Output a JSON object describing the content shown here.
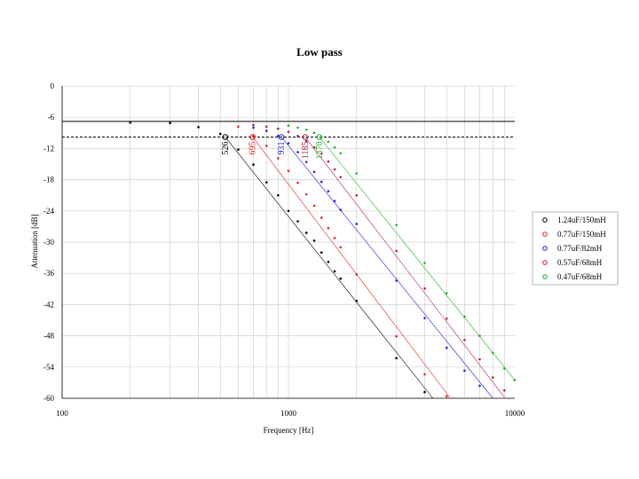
{
  "chart_data": {
    "type": "scatter",
    "title": "Low pass",
    "xlabel": "Frequency [Hz]",
    "ylabel": "Attenuation [dB]",
    "xscale": "log",
    "xlim": [
      100,
      10000
    ],
    "ylim": [
      -60,
      0
    ],
    "x_tick_labels": [
      "100",
      "1000",
      "10000"
    ],
    "y_tick_labels": [
      "0",
      "-6",
      "-12",
      "-18",
      "-24",
      "-30",
      "-36",
      "-42",
      "-48",
      "-54",
      "-60"
    ],
    "grid": true,
    "legend_position": "right",
    "reference_lines": [
      {
        "y": -6.8,
        "style": "solid"
      },
      {
        "y": -9.8,
        "style": "dashed"
      }
    ],
    "series": [
      {
        "name": "1.24uF/150mH",
        "color": "#000000",
        "cutoff": {
          "x": 526,
          "y": -9.8,
          "label": "526"
        },
        "points": [
          [
            200,
            -7
          ],
          [
            300,
            -7.1
          ],
          [
            400,
            -7.9
          ],
          [
            500,
            -9.2
          ],
          [
            600,
            -12.2
          ],
          [
            700,
            -15.1
          ],
          [
            800,
            -18.5
          ],
          [
            900,
            -21
          ],
          [
            1000,
            -24
          ],
          [
            1100,
            -26
          ],
          [
            1200,
            -28.2
          ],
          [
            1300,
            -29.7
          ],
          [
            1400,
            -32
          ],
          [
            1500,
            -33.8
          ],
          [
            1600,
            -35.6
          ],
          [
            1700,
            -37
          ],
          [
            2000,
            -41.3
          ],
          [
            3000,
            -52.3
          ],
          [
            4000,
            -58.8
          ]
        ],
        "fit": [
          [
            526,
            -9.8
          ],
          [
            4350,
            -60
          ]
        ]
      },
      {
        "name": "0.77uF/150mH",
        "color": "#e02020",
        "cutoff": {
          "x": 695,
          "y": -9.8,
          "label": "695"
        },
        "points": [
          [
            600,
            -7.8
          ],
          [
            700,
            -9.6
          ],
          [
            800,
            -11.5
          ],
          [
            900,
            -13.9
          ],
          [
            1000,
            -16.3
          ],
          [
            1100,
            -18.6
          ],
          [
            1200,
            -20.8
          ],
          [
            1300,
            -23
          ],
          [
            1400,
            -25.3
          ],
          [
            1500,
            -27.3
          ],
          [
            1600,
            -29.2
          ],
          [
            1700,
            -31
          ],
          [
            2000,
            -36.2
          ],
          [
            3000,
            -48.1
          ],
          [
            4000,
            -55.4
          ],
          [
            5000,
            -59.6
          ]
        ],
        "fit": [
          [
            695,
            -9.8
          ],
          [
            5200,
            -60
          ]
        ]
      },
      {
        "name": "0.77uF/82mH",
        "color": "#2020e0",
        "cutoff": {
          "x": 931,
          "y": -9.8,
          "label": "931"
        },
        "points": [
          [
            700,
            -8
          ],
          [
            800,
            -8.6
          ],
          [
            900,
            -9.6
          ],
          [
            1000,
            -11
          ],
          [
            1100,
            -12.7
          ],
          [
            1200,
            -14.6
          ],
          [
            1300,
            -16.5
          ],
          [
            1400,
            -18.4
          ],
          [
            1500,
            -20.2
          ],
          [
            1600,
            -22.1
          ],
          [
            1700,
            -23.8
          ],
          [
            2000,
            -26.5
          ],
          [
            3000,
            -37.4
          ],
          [
            4000,
            -44.6
          ],
          [
            5000,
            -50.3
          ],
          [
            6000,
            -54.7
          ],
          [
            7000,
            -57.6
          ]
        ],
        "fit": [
          [
            931,
            -9.8
          ],
          [
            8000,
            -60
          ]
        ]
      },
      {
        "name": "0.57uF/68mH",
        "color": "#b02040",
        "cutoff": {
          "x": 1185,
          "y": -9.8,
          "label": "1185"
        },
        "points": [
          [
            700,
            -7.5
          ],
          [
            800,
            -7.8
          ],
          [
            900,
            -8.2
          ],
          [
            1000,
            -8.8
          ],
          [
            1100,
            -9.6
          ],
          [
            1200,
            -10.6
          ],
          [
            1300,
            -11.8
          ],
          [
            1400,
            -13
          ],
          [
            1500,
            -14.5
          ],
          [
            1600,
            -16
          ],
          [
            1700,
            -17.5
          ],
          [
            2000,
            -21
          ],
          [
            3000,
            -31.7
          ],
          [
            4000,
            -38.9
          ],
          [
            5000,
            -44.7
          ],
          [
            6000,
            -48.8
          ],
          [
            7000,
            -52.5
          ],
          [
            8000,
            -56
          ],
          [
            9000,
            -58.5
          ]
        ],
        "fit": [
          [
            1185,
            -9.8
          ],
          [
            9000,
            -59.8
          ]
        ]
      },
      {
        "name": "0.47uF/68mH",
        "color": "#20b020",
        "cutoff": {
          "x": 1370,
          "y": -9.8,
          "label": "1370"
        },
        "points": [
          [
            1000,
            -7.6
          ],
          [
            1100,
            -8
          ],
          [
            1200,
            -8.4
          ],
          [
            1300,
            -9
          ],
          [
            1400,
            -9.8
          ],
          [
            1500,
            -10.7
          ],
          [
            1600,
            -11.8
          ],
          [
            1700,
            -12.9
          ],
          [
            2000,
            -16.8
          ],
          [
            3000,
            -26.7
          ],
          [
            4000,
            -34
          ],
          [
            5000,
            -39.8
          ],
          [
            6000,
            -44.3
          ],
          [
            7000,
            -48
          ],
          [
            8000,
            -51.3
          ],
          [
            9000,
            -54.3
          ],
          [
            10000,
            -56.5
          ]
        ],
        "fit": [
          [
            1370,
            -9.8
          ],
          [
            10000,
            -56.5
          ]
        ]
      }
    ]
  }
}
